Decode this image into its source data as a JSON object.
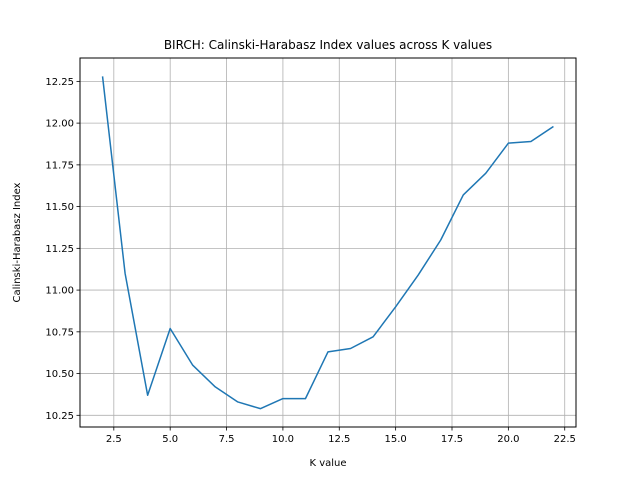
{
  "chart_data": {
    "type": "line",
    "title": "BIRCH: Calinski-Harabasz Index values across K values",
    "xlabel": "K value",
    "ylabel": "Calinski-Harabasz Index",
    "xlim": [
      1.0,
      23.0
    ],
    "ylim": [
      10.18,
      12.39
    ],
    "xticks": [
      2.5,
      5.0,
      7.5,
      10.0,
      12.5,
      15.0,
      17.5,
      20.0,
      22.5
    ],
    "xtick_labels": [
      "2.5",
      "5.0",
      "7.5",
      "10.0",
      "12.5",
      "15.0",
      "17.5",
      "20.0",
      "22.5"
    ],
    "yticks": [
      10.25,
      10.5,
      10.75,
      11.0,
      11.25,
      11.5,
      11.75,
      12.0,
      12.25
    ],
    "ytick_labels": [
      "10.25",
      "10.50",
      "10.75",
      "11.00",
      "11.25",
      "11.50",
      "11.75",
      "12.00",
      "12.25"
    ],
    "grid": true,
    "line_color": "#1f77b4",
    "series": [
      {
        "x": [
          2,
          3,
          4,
          5,
          6,
          7,
          8,
          9,
          10,
          11,
          12,
          13,
          14,
          15,
          16,
          17,
          18,
          19,
          20,
          21,
          22
        ],
        "values": [
          12.28,
          11.1,
          10.37,
          10.77,
          10.55,
          10.42,
          10.33,
          10.29,
          10.35,
          10.35,
          10.63,
          10.65,
          10.72,
          10.9,
          11.09,
          11.3,
          11.57,
          11.7,
          11.88,
          11.89,
          11.98
        ]
      }
    ]
  }
}
